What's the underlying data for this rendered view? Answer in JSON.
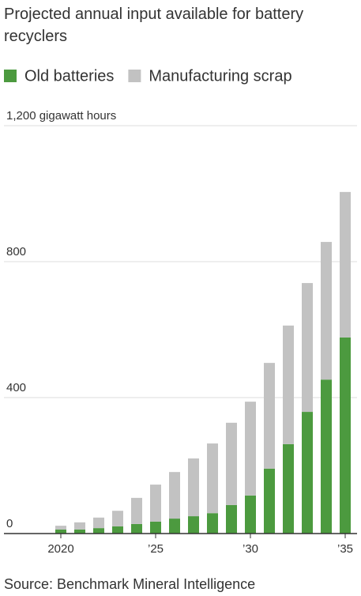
{
  "chart_data": {
    "type": "stacked-bar",
    "title": "Projected annual input available for battery recyclers",
    "source": "Source: Benchmark Mineral Intelligence",
    "categories": [
      "2020",
      null,
      null,
      null,
      null,
      "’25",
      null,
      null,
      null,
      null,
      "’30",
      null,
      null,
      null,
      null,
      "’35"
    ],
    "series": [
      {
        "name": "Old batteries",
        "color": "#4c9a3f",
        "values": [
          12,
          12,
          16,
          21,
          28,
          35,
          44,
          51,
          60,
          84,
          112,
          191,
          263,
          358,
          453,
          577
        ]
      },
      {
        "name": "Manufacturing scrap",
        "color": "#c2c2c2",
        "values": [
          11,
          21,
          31,
          46,
          77,
          109,
          137,
          170,
          205,
          242,
          276,
          311,
          349,
          379,
          405,
          428
        ]
      }
    ],
    "ylim": [
      0,
      1200
    ],
    "yticks": [
      0,
      400,
      800,
      {
        "value": 1200,
        "label": "1,200 gigawatt hours"
      }
    ],
    "grid": true
  }
}
